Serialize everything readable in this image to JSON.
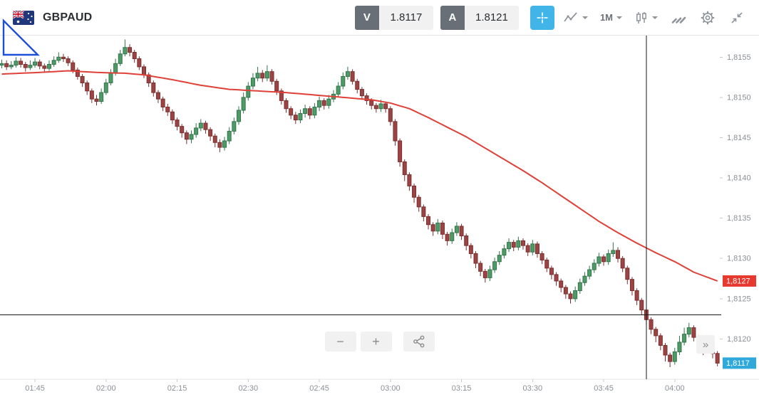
{
  "header": {
    "symbol": "GBPAUD",
    "sell_badge": "V",
    "sell_price": "1.8117",
    "buy_badge": "A",
    "buy_price": "1.8121",
    "timeframe": "1M",
    "accent_blue": "#41b5e8"
  },
  "footer": {
    "zoom_out": "−",
    "zoom_in": "+",
    "jump_latest": "»"
  },
  "drawing": {
    "type": "triangle",
    "color": "#1d4fd7"
  },
  "chart_data": {
    "type": "candlestick",
    "symbol": "GBPAUD",
    "timeframe": "1M",
    "price_base": 1.81,
    "pip": 0.0001,
    "price_min": 1.8115,
    "price_max": 1.81575,
    "start_time": "01:38",
    "x_ticks": [
      {
        "label": "01:45",
        "index": 7
      },
      {
        "label": "02:00",
        "index": 22
      },
      {
        "label": "02:15",
        "index": 37
      },
      {
        "label": "02:30",
        "index": 52
      },
      {
        "label": "02:45",
        "index": 67
      },
      {
        "label": "03:00",
        "index": 82
      },
      {
        "label": "03:15",
        "index": 97
      },
      {
        "label": "03:30",
        "index": 112
      },
      {
        "label": "03:45",
        "index": 127
      },
      {
        "label": "04:00",
        "index": 142
      }
    ],
    "y_ticks": [
      {
        "label": "1,8155",
        "value": 1.8155
      },
      {
        "label": "1,8150",
        "value": 1.815
      },
      {
        "label": "1,8145",
        "value": 1.8145
      },
      {
        "label": "1,8140",
        "value": 1.814
      },
      {
        "label": "1,8135",
        "value": 1.8135
      },
      {
        "label": "1,8130",
        "value": 1.813
      },
      {
        "label": "1,8125",
        "value": 1.8125
      },
      {
        "label": "1,8120",
        "value": 1.812
      }
    ],
    "ma_price_tag": {
      "text": "1,8127",
      "value": 1.81272,
      "color": "#e8392e"
    },
    "last_price_tag": {
      "text": "1,8117",
      "value": 1.8117,
      "color": "#2fa9db"
    },
    "crosshair": {
      "time": "03:54",
      "time_index": 136,
      "price": 1.8123
    },
    "colors": {
      "up": "#4d9b66",
      "up_stroke": "#33744a",
      "down": "#9c4343",
      "down_stroke": "#7b2f2f",
      "ma": "#df4038",
      "crosshair": "#1a1a1a"
    },
    "candles_ohlc_pips": [
      [
        54.0,
        54.7,
        53.6,
        54.2
      ],
      [
        54.2,
        54.6,
        53.4,
        53.8
      ],
      [
        53.8,
        54.5,
        53.5,
        54.0
      ],
      [
        54.0,
        55.0,
        53.7,
        54.5
      ],
      [
        54.5,
        54.9,
        53.7,
        54.1
      ],
      [
        54.1,
        54.4,
        53.2,
        53.7
      ],
      [
        53.7,
        54.6,
        53.4,
        54.0
      ],
      [
        54.0,
        54.9,
        53.7,
        54.4
      ],
      [
        54.4,
        54.7,
        53.5,
        53.9
      ],
      [
        53.9,
        54.2,
        53.1,
        53.6
      ],
      [
        53.6,
        54.6,
        53.3,
        54.1
      ],
      [
        54.1,
        55.1,
        53.8,
        54.6
      ],
      [
        54.6,
        55.6,
        54.3,
        55.0
      ],
      [
        55.0,
        55.4,
        54.4,
        54.8
      ],
      [
        54.8,
        55.1,
        53.9,
        54.3
      ],
      [
        54.3,
        54.6,
        53.0,
        53.4
      ],
      [
        53.4,
        53.7,
        52.2,
        52.6
      ],
      [
        52.6,
        52.9,
        51.3,
        51.8
      ],
      [
        51.8,
        52.1,
        50.3,
        50.8
      ],
      [
        50.8,
        51.1,
        49.3,
        49.8
      ],
      [
        49.8,
        50.3,
        49.0,
        49.5
      ],
      [
        49.5,
        51.1,
        49.2,
        50.6
      ],
      [
        50.6,
        52.3,
        50.3,
        51.8
      ],
      [
        51.8,
        53.5,
        51.5,
        53.0
      ],
      [
        53.0,
        54.8,
        52.7,
        54.2
      ],
      [
        54.2,
        55.9,
        53.9,
        55.4
      ],
      [
        55.4,
        57.2,
        55.1,
        56.2
      ],
      [
        56.2,
        56.6,
        55.1,
        55.6
      ],
      [
        55.6,
        55.9,
        54.3,
        54.8
      ],
      [
        54.8,
        55.1,
        53.4,
        53.8
      ],
      [
        53.8,
        54.1,
        52.4,
        52.8
      ],
      [
        52.8,
        53.1,
        51.3,
        51.8
      ],
      [
        51.8,
        52.1,
        50.1,
        50.6
      ],
      [
        50.6,
        50.9,
        49.3,
        49.8
      ],
      [
        49.8,
        50.1,
        48.3,
        48.8
      ],
      [
        48.8,
        49.2,
        47.7,
        48.2
      ],
      [
        48.2,
        48.5,
        46.7,
        47.2
      ],
      [
        47.2,
        47.5,
        45.9,
        46.4
      ],
      [
        46.4,
        46.7,
        45.0,
        45.6
      ],
      [
        45.6,
        45.9,
        44.2,
        44.8
      ],
      [
        44.8,
        45.9,
        44.3,
        45.4
      ],
      [
        45.4,
        46.8,
        45.0,
        46.2
      ],
      [
        46.2,
        47.3,
        45.8,
        46.8
      ],
      [
        46.8,
        47.1,
        45.5,
        46.0
      ],
      [
        46.0,
        46.3,
        44.6,
        45.2
      ],
      [
        45.2,
        45.5,
        43.8,
        44.4
      ],
      [
        44.4,
        44.8,
        43.2,
        43.8
      ],
      [
        43.8,
        45.1,
        43.4,
        44.6
      ],
      [
        44.6,
        46.3,
        44.2,
        45.8
      ],
      [
        45.8,
        47.5,
        45.4,
        47.0
      ],
      [
        47.0,
        48.9,
        46.6,
        48.4
      ],
      [
        48.4,
        50.6,
        48.0,
        50.0
      ],
      [
        50.0,
        51.9,
        49.6,
        51.4
      ],
      [
        51.4,
        53.0,
        51.0,
        52.4
      ],
      [
        52.4,
        53.8,
        52.0,
        53.0
      ],
      [
        53.0,
        53.4,
        51.9,
        52.4
      ],
      [
        52.4,
        54.0,
        52.0,
        53.2
      ],
      [
        53.2,
        53.5,
        51.6,
        52.0
      ],
      [
        52.0,
        52.3,
        50.3,
        50.8
      ],
      [
        50.8,
        51.1,
        49.1,
        49.6
      ],
      [
        49.6,
        49.9,
        48.1,
        48.6
      ],
      [
        48.6,
        48.9,
        47.3,
        47.8
      ],
      [
        47.8,
        48.2,
        46.7,
        47.2
      ],
      [
        47.2,
        48.5,
        46.8,
        48.0
      ],
      [
        48.0,
        49.1,
        47.5,
        48.6
      ],
      [
        48.6,
        48.9,
        47.3,
        47.8
      ],
      [
        47.8,
        49.3,
        47.4,
        48.8
      ],
      [
        48.8,
        50.1,
        48.3,
        49.6
      ],
      [
        49.6,
        49.9,
        48.5,
        49.0
      ],
      [
        49.0,
        50.3,
        48.6,
        49.8
      ],
      [
        49.8,
        50.9,
        49.4,
        50.4
      ],
      [
        50.4,
        51.9,
        50.0,
        51.4
      ],
      [
        51.4,
        53.1,
        51.0,
        52.6
      ],
      [
        52.6,
        53.8,
        52.2,
        53.2
      ],
      [
        53.2,
        53.5,
        51.6,
        52.0
      ],
      [
        52.0,
        52.3,
        50.5,
        51.0
      ],
      [
        51.0,
        51.3,
        49.7,
        50.2
      ],
      [
        50.2,
        50.5,
        49.1,
        49.6
      ],
      [
        49.6,
        49.9,
        48.5,
        49.0
      ],
      [
        49.0,
        49.3,
        48.1,
        48.6
      ],
      [
        48.6,
        49.7,
        48.2,
        49.2
      ],
      [
        49.2,
        49.5,
        48.1,
        48.6
      ],
      [
        48.6,
        48.9,
        46.5,
        47.0
      ],
      [
        47.0,
        47.3,
        44.0,
        44.6
      ],
      [
        44.6,
        44.9,
        41.4,
        42.0
      ],
      [
        42.0,
        42.3,
        39.6,
        40.4
      ],
      [
        40.4,
        40.7,
        38.4,
        39.0
      ],
      [
        39.0,
        39.3,
        36.9,
        37.6
      ],
      [
        37.6,
        37.9,
        35.8,
        36.4
      ],
      [
        36.4,
        36.7,
        34.6,
        35.2
      ],
      [
        35.2,
        35.5,
        33.6,
        34.2
      ],
      [
        34.2,
        34.5,
        32.8,
        33.4
      ],
      [
        33.4,
        34.9,
        33.0,
        34.4
      ],
      [
        34.4,
        34.7,
        32.4,
        33.0
      ],
      [
        33.0,
        33.3,
        31.6,
        32.2
      ],
      [
        32.2,
        33.7,
        31.8,
        33.2
      ],
      [
        33.2,
        34.5,
        32.8,
        34.0
      ],
      [
        34.0,
        34.3,
        32.3,
        32.8
      ],
      [
        32.8,
        33.1,
        31.0,
        31.6
      ],
      [
        31.6,
        31.9,
        30.0,
        30.6
      ],
      [
        30.6,
        30.9,
        28.8,
        29.4
      ],
      [
        29.4,
        29.7,
        27.8,
        28.4
      ],
      [
        28.4,
        28.7,
        27.0,
        27.6
      ],
      [
        27.6,
        29.1,
        27.2,
        28.6
      ],
      [
        28.6,
        30.1,
        28.2,
        29.6
      ],
      [
        29.6,
        30.9,
        29.2,
        30.4
      ],
      [
        30.4,
        31.7,
        30.0,
        31.2
      ],
      [
        31.2,
        32.5,
        30.8,
        32.0
      ],
      [
        32.0,
        32.3,
        30.9,
        31.4
      ],
      [
        31.4,
        32.7,
        31.0,
        32.2
      ],
      [
        32.2,
        32.5,
        31.1,
        31.6
      ],
      [
        31.6,
        31.9,
        30.3,
        30.8
      ],
      [
        30.8,
        32.3,
        30.4,
        31.8
      ],
      [
        31.8,
        32.1,
        30.1,
        30.6
      ],
      [
        30.6,
        30.9,
        29.3,
        29.8
      ],
      [
        29.8,
        30.1,
        28.3,
        28.8
      ],
      [
        28.8,
        29.1,
        27.4,
        28.0
      ],
      [
        28.0,
        28.3,
        26.6,
        27.2
      ],
      [
        27.2,
        27.5,
        25.8,
        26.4
      ],
      [
        26.4,
        26.7,
        25.0,
        25.6
      ],
      [
        25.6,
        25.9,
        24.4,
        25.0
      ],
      [
        25.0,
        26.5,
        24.6,
        26.0
      ],
      [
        26.0,
        27.5,
        25.6,
        27.0
      ],
      [
        27.0,
        28.3,
        26.6,
        27.8
      ],
      [
        27.8,
        29.1,
        27.4,
        28.6
      ],
      [
        28.6,
        29.9,
        28.2,
        29.4
      ],
      [
        29.4,
        30.7,
        29.0,
        30.2
      ],
      [
        30.2,
        30.5,
        29.1,
        29.6
      ],
      [
        29.6,
        31.1,
        29.2,
        30.6
      ],
      [
        30.6,
        32.0,
        30.2,
        31.0
      ],
      [
        31.0,
        31.4,
        29.5,
        30.0
      ],
      [
        30.0,
        30.3,
        28.3,
        28.8
      ],
      [
        28.8,
        29.1,
        26.8,
        27.4
      ],
      [
        27.4,
        27.7,
        25.4,
        26.0
      ],
      [
        26.0,
        26.3,
        24.2,
        24.8
      ],
      [
        24.8,
        25.1,
        23.0,
        23.6
      ],
      [
        23.6,
        23.9,
        21.8,
        22.4
      ],
      [
        22.4,
        22.7,
        20.6,
        21.2
      ],
      [
        21.2,
        21.5,
        19.6,
        20.4
      ],
      [
        20.4,
        20.7,
        18.6,
        19.2
      ],
      [
        19.2,
        19.5,
        17.2,
        18.0
      ],
      [
        18.0,
        18.3,
        16.5,
        17.2
      ],
      [
        17.2,
        18.9,
        16.8,
        18.4
      ],
      [
        18.4,
        20.4,
        18.0,
        19.6
      ],
      [
        19.6,
        21.4,
        19.2,
        20.6
      ],
      [
        20.6,
        22.0,
        20.2,
        21.4
      ],
      [
        21.4,
        21.7,
        19.7,
        20.2
      ],
      [
        20.2,
        20.5,
        18.9,
        19.4
      ],
      [
        19.4,
        19.7,
        18.0,
        18.6
      ],
      [
        18.6,
        19.9,
        18.2,
        19.4
      ],
      [
        19.4,
        19.7,
        17.6,
        18.2
      ],
      [
        18.2,
        18.5,
        16.6,
        17.0
      ]
    ],
    "ma_anchor_points": [
      [
        0,
        52.9
      ],
      [
        8,
        53.1
      ],
      [
        14,
        53.3
      ],
      [
        20,
        53.1
      ],
      [
        26,
        53.0
      ],
      [
        30,
        52.8
      ],
      [
        36,
        52.2
      ],
      [
        42,
        51.5
      ],
      [
        48,
        51.0
      ],
      [
        54,
        50.8
      ],
      [
        60,
        50.6
      ],
      [
        66,
        50.3
      ],
      [
        72,
        50.0
      ],
      [
        78,
        49.7
      ],
      [
        82,
        49.3
      ],
      [
        86,
        48.6
      ],
      [
        90,
        47.5
      ],
      [
        94,
        46.3
      ],
      [
        98,
        45.1
      ],
      [
        102,
        43.7
      ],
      [
        106,
        42.3
      ],
      [
        110,
        40.9
      ],
      [
        114,
        39.4
      ],
      [
        118,
        37.8
      ],
      [
        122,
        36.2
      ],
      [
        126,
        34.6
      ],
      [
        130,
        33.2
      ],
      [
        134,
        31.9
      ],
      [
        138,
        30.7
      ],
      [
        142,
        29.6
      ],
      [
        146,
        28.3
      ],
      [
        151,
        27.2
      ]
    ]
  }
}
